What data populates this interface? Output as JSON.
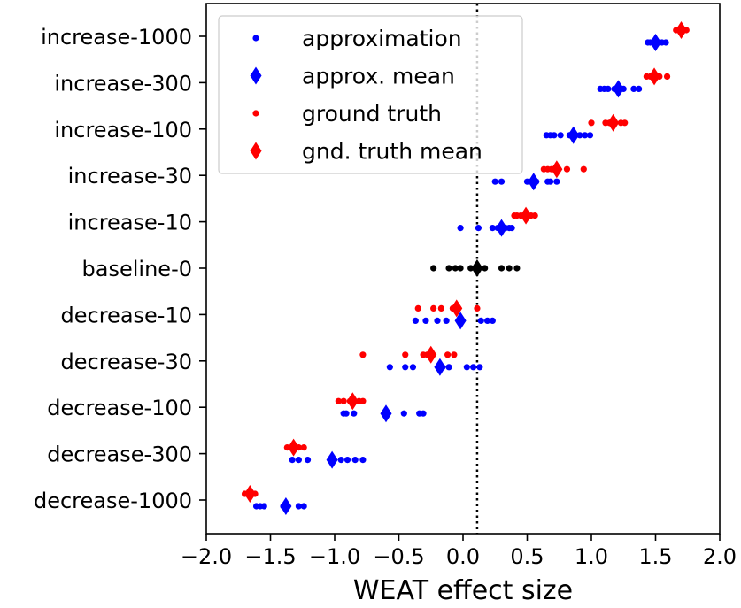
{
  "chart_data": {
    "type": "scatter",
    "title": "",
    "xlabel": "WEAT effect size",
    "ylabel": "",
    "xlim": [
      -2.0,
      2.0
    ],
    "xticks": [
      "−2.0",
      "−1.5",
      "−1.0",
      "−0.5",
      "0.0",
      "0.5",
      "1.0",
      "1.5",
      "2.0"
    ],
    "xtick_values": [
      -2.0,
      -1.5,
      -1.0,
      -0.5,
      0.0,
      0.5,
      1.0,
      1.5,
      2.0
    ],
    "categories": [
      "increase-1000",
      "increase-300",
      "increase-100",
      "increase-30",
      "increase-10",
      "baseline-0",
      "decrease-10",
      "decrease-30",
      "decrease-100",
      "decrease-300",
      "decrease-1000"
    ],
    "reference_line": {
      "x": 0.11,
      "style": "dotted"
    },
    "colors": {
      "approximation": "#0000ff",
      "ground_truth": "#ff0000",
      "baseline": "#000000"
    },
    "legend": {
      "position": "upper-left",
      "entries": [
        {
          "label": "approximation",
          "marker": "dot",
          "color": "#0000ff"
        },
        {
          "label": "approx. mean",
          "marker": "diamond",
          "color": "#0000ff"
        },
        {
          "label": "ground truth",
          "marker": "dot",
          "color": "#ff0000"
        },
        {
          "label": "gnd. truth mean",
          "marker": "diamond",
          "color": "#ff0000"
        }
      ]
    },
    "series": [
      {
        "category": "increase-1000",
        "approximation": [
          1.44,
          1.46,
          1.49,
          1.52,
          1.55,
          1.58
        ],
        "approx_mean": 1.5,
        "ground_truth": [
          1.66,
          1.68,
          1.7,
          1.72,
          1.74
        ],
        "gt_mean": 1.7
      },
      {
        "category": "increase-300",
        "approximation": [
          1.07,
          1.1,
          1.13,
          1.18,
          1.25,
          1.33,
          1.37
        ],
        "approx_mean": 1.21,
        "ground_truth": [
          1.43,
          1.46,
          1.49,
          1.53,
          1.59
        ],
        "gt_mean": 1.49
      },
      {
        "category": "increase-100",
        "approximation": [
          0.65,
          0.68,
          0.71,
          0.76,
          0.83,
          0.91,
          0.95,
          0.99
        ],
        "approx_mean": 0.86,
        "ground_truth": [
          1.0,
          1.11,
          1.14,
          1.17,
          1.23,
          1.26
        ],
        "gt_mean": 1.17
      },
      {
        "category": "increase-30",
        "approximation": [
          0.25,
          0.3,
          0.5,
          0.53,
          0.57,
          0.66,
          0.68,
          0.73
        ],
        "approx_mean": 0.55,
        "ground_truth": [
          0.63,
          0.66,
          0.69,
          0.73,
          0.81,
          0.94
        ],
        "gt_mean": 0.73
      },
      {
        "category": "increase-10",
        "approximation": [
          -0.02,
          0.12,
          0.23,
          0.27,
          0.33,
          0.36,
          0.38
        ],
        "approx_mean": 0.3,
        "ground_truth": [
          0.4,
          0.42,
          0.45,
          0.49,
          0.5,
          0.53,
          0.56
        ],
        "gt_mean": 0.49
      },
      {
        "category": "baseline-0",
        "baseline": [
          -0.23,
          -0.11,
          -0.06,
          -0.02,
          0.06,
          0.17,
          0.3,
          0.36,
          0.42
        ],
        "baseline_mean": 0.11
      },
      {
        "category": "decrease-10",
        "approximation": [
          -0.37,
          -0.29,
          -0.2,
          -0.13,
          0.14,
          0.19,
          0.23
        ],
        "approx_mean": -0.02,
        "ground_truth": [
          -0.35,
          -0.23,
          -0.17,
          -0.08,
          0.11
        ],
        "gt_mean": -0.05
      },
      {
        "category": "decrease-30",
        "approximation": [
          -0.57,
          -0.45,
          -0.39,
          -0.16,
          -0.11,
          0.03,
          0.08,
          0.13
        ],
        "approx_mean": -0.18,
        "ground_truth": [
          -0.78,
          -0.45,
          -0.31,
          -0.28,
          -0.24,
          -0.12,
          -0.07
        ],
        "gt_mean": -0.25
      },
      {
        "category": "decrease-100",
        "approximation": [
          -0.93,
          -0.91,
          -0.85,
          -0.6,
          -0.46,
          -0.34,
          -0.31
        ],
        "approx_mean": -0.6,
        "ground_truth": [
          -0.97,
          -0.93,
          -0.88,
          -0.86,
          -0.81,
          -0.78
        ],
        "gt_mean": -0.86
      },
      {
        "category": "decrease-300",
        "approximation": [
          -1.33,
          -1.28,
          -1.21,
          -1.03,
          -1.01,
          -0.95,
          -0.9,
          -0.84,
          -0.78
        ],
        "approx_mean": -1.02,
        "ground_truth": [
          -1.37,
          -1.33,
          -1.3,
          -1.28,
          -1.24
        ],
        "gt_mean": -1.32
      },
      {
        "category": "decrease-1000",
        "approximation": [
          -1.61,
          -1.58,
          -1.55,
          -1.4,
          -1.38,
          -1.28,
          -1.24
        ],
        "approx_mean": -1.38,
        "ground_truth": [
          -1.7,
          -1.67,
          -1.64,
          -1.62
        ],
        "gt_mean": -1.66
      }
    ]
  }
}
